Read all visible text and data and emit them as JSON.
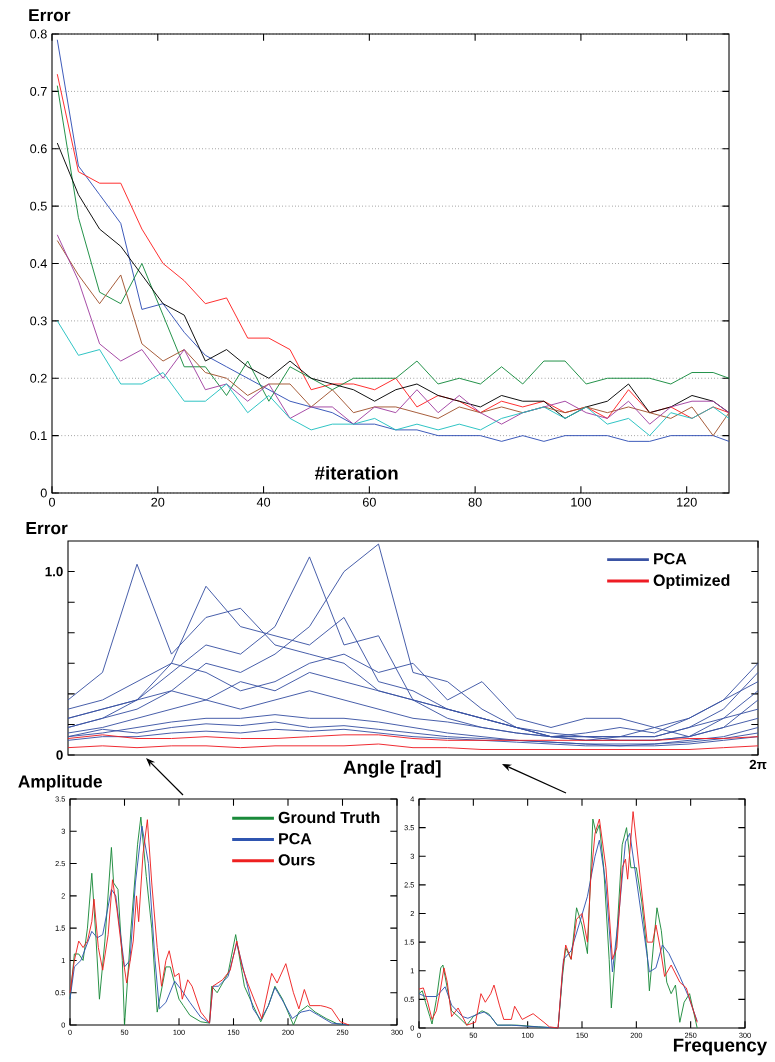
{
  "chart_data": [
    {
      "type": "line",
      "xlabel": "#iteration",
      "ylabel": "Error",
      "xlim": [
        0,
        128
      ],
      "ylim": [
        0,
        0.8
      ],
      "xticks": [
        0,
        20,
        40,
        60,
        80,
        100,
        120
      ],
      "yticks": [
        0,
        0.1,
        0.2,
        0.3,
        0.4,
        0.5,
        0.6,
        0.7,
        0.8
      ],
      "grid": "y",
      "x": [
        1,
        5,
        9,
        13,
        17,
        21,
        25,
        29,
        33,
        37,
        41,
        45,
        49,
        53,
        57,
        61,
        65,
        69,
        73,
        77,
        81,
        85,
        89,
        93,
        97,
        101,
        105,
        109,
        113,
        117,
        121,
        125,
        128
      ],
      "series": [
        {
          "color": "#2f4fb5",
          "values": [
            0.79,
            0.57,
            0.52,
            0.47,
            0.32,
            0.33,
            0.28,
            0.24,
            0.22,
            0.2,
            0.18,
            0.16,
            0.15,
            0.14,
            0.12,
            0.12,
            0.11,
            0.11,
            0.1,
            0.1,
            0.1,
            0.09,
            0.1,
            0.09,
            0.1,
            0.1,
            0.1,
            0.09,
            0.09,
            0.1,
            0.1,
            0.1,
            0.09
          ]
        },
        {
          "color": "#ff2020",
          "values": [
            0.73,
            0.56,
            0.54,
            0.54,
            0.46,
            0.4,
            0.37,
            0.33,
            0.34,
            0.27,
            0.27,
            0.25,
            0.18,
            0.19,
            0.19,
            0.18,
            0.2,
            0.15,
            0.17,
            0.16,
            0.14,
            0.16,
            0.15,
            0.16,
            0.14,
            0.15,
            0.13,
            0.18,
            0.14,
            0.15,
            0.13,
            0.15,
            0.14
          ]
        },
        {
          "color": "#138a3c",
          "values": [
            0.71,
            0.48,
            0.35,
            0.33,
            0.4,
            0.31,
            0.22,
            0.22,
            0.17,
            0.23,
            0.16,
            0.22,
            0.2,
            0.18,
            0.2,
            0.2,
            0.2,
            0.23,
            0.19,
            0.2,
            0.19,
            0.22,
            0.19,
            0.23,
            0.23,
            0.19,
            0.2,
            0.2,
            0.2,
            0.19,
            0.21,
            0.21,
            0.2
          ]
        },
        {
          "color": "#000000",
          "values": [
            0.61,
            0.52,
            0.46,
            0.43,
            0.38,
            0.33,
            0.31,
            0.23,
            0.25,
            0.22,
            0.2,
            0.23,
            0.2,
            0.19,
            0.18,
            0.16,
            0.18,
            0.19,
            0.17,
            0.16,
            0.15,
            0.17,
            0.16,
            0.16,
            0.13,
            0.15,
            0.16,
            0.19,
            0.14,
            0.15,
            0.17,
            0.16,
            0.14
          ]
        },
        {
          "color": "#a0522d",
          "values": [
            0.44,
            0.38,
            0.33,
            0.38,
            0.26,
            0.23,
            0.25,
            0.21,
            0.2,
            0.17,
            0.19,
            0.19,
            0.15,
            0.18,
            0.14,
            0.15,
            0.15,
            0.14,
            0.13,
            0.15,
            0.14,
            0.15,
            0.14,
            0.15,
            0.14,
            0.15,
            0.14,
            0.15,
            0.14,
            0.13,
            0.15,
            0.1,
            0.14
          ]
        },
        {
          "color": "#a040a0",
          "values": [
            0.45,
            0.37,
            0.26,
            0.23,
            0.25,
            0.2,
            0.25,
            0.18,
            0.19,
            0.16,
            0.19,
            0.13,
            0.15,
            0.15,
            0.12,
            0.15,
            0.14,
            0.18,
            0.14,
            0.17,
            0.14,
            0.12,
            0.14,
            0.15,
            0.16,
            0.14,
            0.13,
            0.16,
            0.12,
            0.15,
            0.16,
            0.16,
            0.14
          ]
        },
        {
          "color": "#20c0c0",
          "values": [
            0.3,
            0.24,
            0.25,
            0.19,
            0.19,
            0.21,
            0.16,
            0.16,
            0.19,
            0.14,
            0.17,
            0.13,
            0.11,
            0.12,
            0.12,
            0.13,
            0.11,
            0.12,
            0.11,
            0.12,
            0.11,
            0.13,
            0.14,
            0.15,
            0.13,
            0.15,
            0.12,
            0.13,
            0.1,
            0.14,
            0.13,
            0.15,
            0.13
          ]
        }
      ]
    },
    {
      "type": "line",
      "xlabel": "Angle [rad]",
      "ylabel": "Error",
      "ylim": [
        0,
        1.1667
      ],
      "legend": "top right",
      "yticks": [
        0,
        {
          "value": 0.1667,
          "label": null
        },
        {
          "value": 0.3333,
          "label": null
        },
        {
          "value": 0.5,
          "label": null
        },
        {
          "value": 0.6667,
          "label": null
        },
        {
          "value": 0.8333,
          "label": null
        },
        {
          "value": 1,
          "label": "1.0"
        }
      ],
      "categories": [
        null,
        null,
        null,
        null,
        null,
        null,
        null,
        null,
        null,
        null,
        null,
        null,
        null,
        null,
        null,
        null,
        null,
        null,
        null,
        null,
        "2π"
      ],
      "series": [
        {
          "name": "PCA",
          "color": "#3a53a4",
          "values": [
            0.3,
            0.45,
            1.04,
            0.55,
            0.75,
            0.8,
            0.6,
            0.55,
            0.5,
            0.35,
            0.3,
            0.2,
            0.15,
            0.12,
            0.1,
            0.1,
            0.08,
            0.08,
            0.1,
            0.2,
            0.35
          ]
        },
        {
          "color": "#3a53a4",
          "values": [
            0.25,
            0.3,
            0.4,
            0.5,
            0.92,
            0.7,
            0.65,
            0.6,
            0.75,
            0.4,
            0.35,
            0.25,
            0.2,
            0.15,
            0.12,
            0.1,
            0.1,
            0.15,
            0.2,
            0.3,
            0.5
          ]
        },
        {
          "color": "#3a53a4",
          "values": [
            0.2,
            0.25,
            0.3,
            0.45,
            0.6,
            0.55,
            0.7,
            1.08,
            0.6,
            0.65,
            0.3,
            0.25,
            0.2,
            0.15,
            0.1,
            0.1,
            0.1,
            0.1,
            0.15,
            0.25,
            0.45
          ]
        },
        {
          "color": "#3a53a4",
          "values": [
            0.15,
            0.2,
            0.3,
            0.35,
            0.5,
            0.45,
            0.55,
            0.7,
            1.0,
            1.15,
            0.45,
            0.4,
            0.25,
            0.15,
            0.1,
            0.12,
            0.15,
            0.12,
            0.2,
            0.3,
            0.4
          ]
        },
        {
          "color": "#3a53a4",
          "values": [
            0.2,
            0.25,
            0.3,
            0.5,
            0.45,
            0.35,
            0.4,
            0.5,
            0.55,
            0.45,
            0.5,
            0.3,
            0.4,
            0.2,
            0.15,
            0.2,
            0.2,
            0.15,
            0.1,
            0.15,
            0.3
          ]
        },
        {
          "color": "#3a53a4",
          "values": [
            0.15,
            0.2,
            0.25,
            0.35,
            0.3,
            0.4,
            0.35,
            0.45,
            0.4,
            0.35,
            0.3,
            0.25,
            0.2,
            0.15,
            0.1,
            0.08,
            0.1,
            0.1,
            0.15,
            0.2,
            0.25
          ]
        },
        {
          "color": "#3a53a4",
          "values": [
            0.12,
            0.15,
            0.2,
            0.25,
            0.3,
            0.25,
            0.3,
            0.35,
            0.3,
            0.25,
            0.2,
            0.18,
            0.15,
            0.12,
            0.1,
            0.08,
            0.08,
            0.08,
            0.1,
            0.15,
            0.2
          ]
        },
        {
          "color": "#3a53a4",
          "values": [
            0.1,
            0.12,
            0.15,
            0.18,
            0.2,
            0.2,
            0.22,
            0.2,
            0.2,
            0.18,
            0.15,
            0.12,
            0.1,
            0.08,
            0.07,
            0.06,
            0.06,
            0.06,
            0.08,
            0.1,
            0.15
          ]
        },
        {
          "color": "#3a53a4",
          "values": [
            0.1,
            0.14,
            0.12,
            0.15,
            0.17,
            0.16,
            0.18,
            0.15,
            0.16,
            0.14,
            0.12,
            0.1,
            0.09,
            0.08,
            0.07,
            0.06,
            0.05,
            0.06,
            0.07,
            0.09,
            0.12
          ]
        },
        {
          "color": "#3a53a4",
          "values": [
            0.08,
            0.1,
            0.1,
            0.12,
            0.13,
            0.12,
            0.14,
            0.13,
            0.14,
            0.12,
            0.1,
            0.09,
            0.08,
            0.07,
            0.06,
            0.05,
            0.05,
            0.05,
            0.06,
            0.08,
            0.1
          ]
        },
        {
          "name": "Optimized",
          "color": "#ee1c24",
          "values": [
            0.04,
            0.05,
            0.04,
            0.05,
            0.05,
            0.04,
            0.05,
            0.05,
            0.05,
            0.06,
            0.04,
            0.04,
            0.03,
            0.03,
            0.03,
            0.03,
            0.03,
            0.03,
            0.03,
            0.04,
            0.05
          ]
        },
        {
          "color": "#ee1c24",
          "values": [
            0.09,
            0.11,
            0.09,
            0.09,
            0.1,
            0.09,
            0.09,
            0.1,
            0.11,
            0.11,
            0.09,
            0.08,
            0.08,
            0.08,
            0.08,
            0.08,
            0.08,
            0.08,
            0.09,
            0.09,
            0.1
          ]
        }
      ]
    },
    {
      "type": "line",
      "ylabel": "Amplitude",
      "xlim": [
        0,
        300
      ],
      "ylim": [
        0,
        3.5
      ],
      "legend": "top right",
      "xticks": [
        0,
        50,
        100,
        150,
        200,
        250,
        300
      ],
      "yticks": [
        0,
        0.5,
        1,
        1.5,
        2,
        2.5,
        3,
        3.5
      ],
      "series": [
        {
          "name": "Ground Truth",
          "color": "#1a8a3a",
          "x": [
            0,
            4,
            8,
            12,
            16,
            20,
            24,
            27,
            32,
            38,
            40,
            44,
            48,
            50,
            56,
            62,
            65,
            70,
            75,
            80,
            88,
            92,
            100,
            104,
            110,
            120,
            128,
            130,
            135,
            140,
            145,
            152,
            160,
            168,
            175,
            182,
            188,
            195,
            200,
            205,
            210,
            218,
            225,
            235,
            245,
            256
          ],
          "values": [
            0.4,
            1.1,
            1.1,
            1.0,
            1.5,
            2.35,
            1.3,
            0.4,
            1.3,
            2.75,
            2.2,
            2.1,
            1.0,
            0.0,
            1.5,
            2.8,
            3.22,
            2.3,
            1.5,
            0.2,
            0.9,
            0.9,
            0.4,
            0.3,
            0.15,
            0.05,
            0.03,
            0.6,
            0.5,
            0.65,
            0.8,
            1.4,
            0.6,
            0.3,
            0.05,
            0.3,
            0.6,
            0.4,
            0.2,
            0.0,
            0.2,
            0.3,
            0.2,
            0.1,
            0.02,
            0.0
          ]
        },
        {
          "name": "PCA",
          "color": "#2f55b0",
          "x": [
            0,
            4,
            10,
            20,
            25,
            30,
            38,
            42,
            50,
            55,
            60,
            66,
            72,
            78,
            82,
            88,
            96,
            102,
            110,
            120,
            128,
            131,
            136,
            145,
            153,
            160,
            168,
            175,
            182,
            188,
            196,
            204,
            212,
            220,
            228,
            240,
            256
          ],
          "values": [
            0.4,
            0.9,
            1.0,
            1.45,
            1.35,
            1.4,
            2.1,
            2.0,
            0.9,
            1.0,
            2.2,
            3.08,
            2.5,
            1.0,
            0.25,
            0.35,
            0.68,
            0.55,
            0.35,
            0.12,
            0.03,
            0.6,
            0.6,
            0.75,
            1.27,
            0.8,
            0.25,
            0.08,
            0.3,
            0.58,
            0.35,
            0.1,
            0.2,
            0.23,
            0.15,
            0.03,
            0.0
          ]
        },
        {
          "name": "Ours",
          "color": "#ee2020",
          "x": [
            0,
            4,
            8,
            12,
            16,
            20,
            22,
            26,
            30,
            35,
            39,
            43,
            48,
            52,
            58,
            61,
            63,
            67,
            71,
            75,
            80,
            84,
            88,
            91,
            96,
            100,
            103,
            108,
            112,
            120,
            128,
            131,
            140,
            147,
            153,
            158,
            163,
            170,
            176,
            185,
            190,
            198,
            205,
            210,
            215,
            220,
            230,
            235,
            240,
            248,
            256
          ],
          "values": [
            0.5,
            1.0,
            1.3,
            1.2,
            1.3,
            1.6,
            1.95,
            1.2,
            0.85,
            1.4,
            2.25,
            1.8,
            1.1,
            0.65,
            1.3,
            2.0,
            1.6,
            2.65,
            3.18,
            2.2,
            1.2,
            0.6,
            1.0,
            1.15,
            0.75,
            0.8,
            0.4,
            0.7,
            0.6,
            0.2,
            0.03,
            0.6,
            0.7,
            0.85,
            1.3,
            0.9,
            0.65,
            0.35,
            0.1,
            0.8,
            0.65,
            0.95,
            0.5,
            0.25,
            0.55,
            0.3,
            0.3,
            0.28,
            0.25,
            0.05,
            0.0
          ]
        }
      ]
    },
    {
      "type": "line",
      "xlabel": "Frequency",
      "xlim": [
        0,
        300
      ],
      "ylim": [
        0,
        4
      ],
      "xticks": [
        0,
        50,
        100,
        150,
        200,
        250,
        300
      ],
      "yticks": [
        0,
        0.5,
        1,
        1.5,
        2,
        2.5,
        3,
        3.5,
        4
      ],
      "series": [
        {
          "color": "#1a8a3a",
          "x": [
            0,
            3,
            6,
            10,
            12,
            16,
            20,
            22,
            26,
            30,
            36,
            44,
            50,
            58,
            64,
            72,
            80,
            90,
            110,
            128,
            132,
            135,
            140,
            145,
            150,
            155,
            160,
            163,
            166,
            170,
            175,
            177,
            182,
            187,
            191,
            195,
            200,
            205,
            210,
            212,
            216,
            219,
            223,
            228,
            232,
            236,
            240,
            244,
            249,
            256
          ],
          "values": [
            0.6,
            0.65,
            0.45,
            0.2,
            0.07,
            0.5,
            1.05,
            1.1,
            0.7,
            0.3,
            0.2,
            0.05,
            0.2,
            0.3,
            0.25,
            0.05,
            0.05,
            0.05,
            0.02,
            0.0,
            0.9,
            1.4,
            1.2,
            2.1,
            1.8,
            1.3,
            3.65,
            3.4,
            3.55,
            2.8,
            1.2,
            0.35,
            1.6,
            3.2,
            3.5,
            2.8,
            2.8,
            2.2,
            1.3,
            0.65,
            1.5,
            2.1,
            1.7,
            0.8,
            0.6,
            0.75,
            0.1,
            0.45,
            0.6,
            0.0
          ]
        },
        {
          "color": "#2f55b0",
          "x": [
            0,
            6,
            16,
            24,
            30,
            40,
            45,
            55,
            60,
            66,
            72,
            85,
            100,
            128,
            133,
            140,
            148,
            155,
            162,
            166,
            172,
            178,
            184,
            190,
            194,
            200,
            206,
            212,
            218,
            224,
            230,
            240,
            248,
            256
          ],
          "values": [
            0.6,
            0.55,
            0.55,
            0.72,
            0.4,
            0.2,
            0.17,
            0.25,
            0.28,
            0.2,
            0.05,
            0.05,
            0.03,
            0.0,
            1.2,
            1.35,
            1.85,
            2.3,
            3.0,
            3.28,
            2.5,
            0.98,
            2.0,
            3.25,
            3.4,
            2.6,
            1.8,
            0.98,
            1.05,
            1.45,
            1.3,
            0.9,
            0.55,
            0.12
          ]
        },
        {
          "color": "#ee2020",
          "x": [
            0,
            4,
            8,
            12,
            16,
            20,
            23,
            26,
            30,
            36,
            44,
            52,
            57,
            61,
            66,
            69,
            74,
            78,
            85,
            88,
            95,
            105,
            115,
            120,
            128,
            132,
            135,
            140,
            145,
            150,
            155,
            158,
            162,
            166,
            172,
            178,
            182,
            187,
            190,
            192,
            197,
            202,
            210,
            215,
            218,
            222,
            226,
            232,
            240,
            246,
            250,
            256
          ],
          "values": [
            0.68,
            0.7,
            0.45,
            0.15,
            0.3,
            0.7,
            1.05,
            0.8,
            0.2,
            0.35,
            0.05,
            0.1,
            0.6,
            0.45,
            0.6,
            0.75,
            0.4,
            0.15,
            0.15,
            0.38,
            0.15,
            0.25,
            0.1,
            0.02,
            0.0,
            1.0,
            1.45,
            1.2,
            1.9,
            2.0,
            1.5,
            2.6,
            3.4,
            3.65,
            2.8,
            1.2,
            1.4,
            2.8,
            2.95,
            2.6,
            3.78,
            2.9,
            1.5,
            1.5,
            1.8,
            1.4,
            0.9,
            1.1,
            0.8,
            0.7,
            0.45,
            0.1
          ]
        }
      ]
    }
  ]
}
